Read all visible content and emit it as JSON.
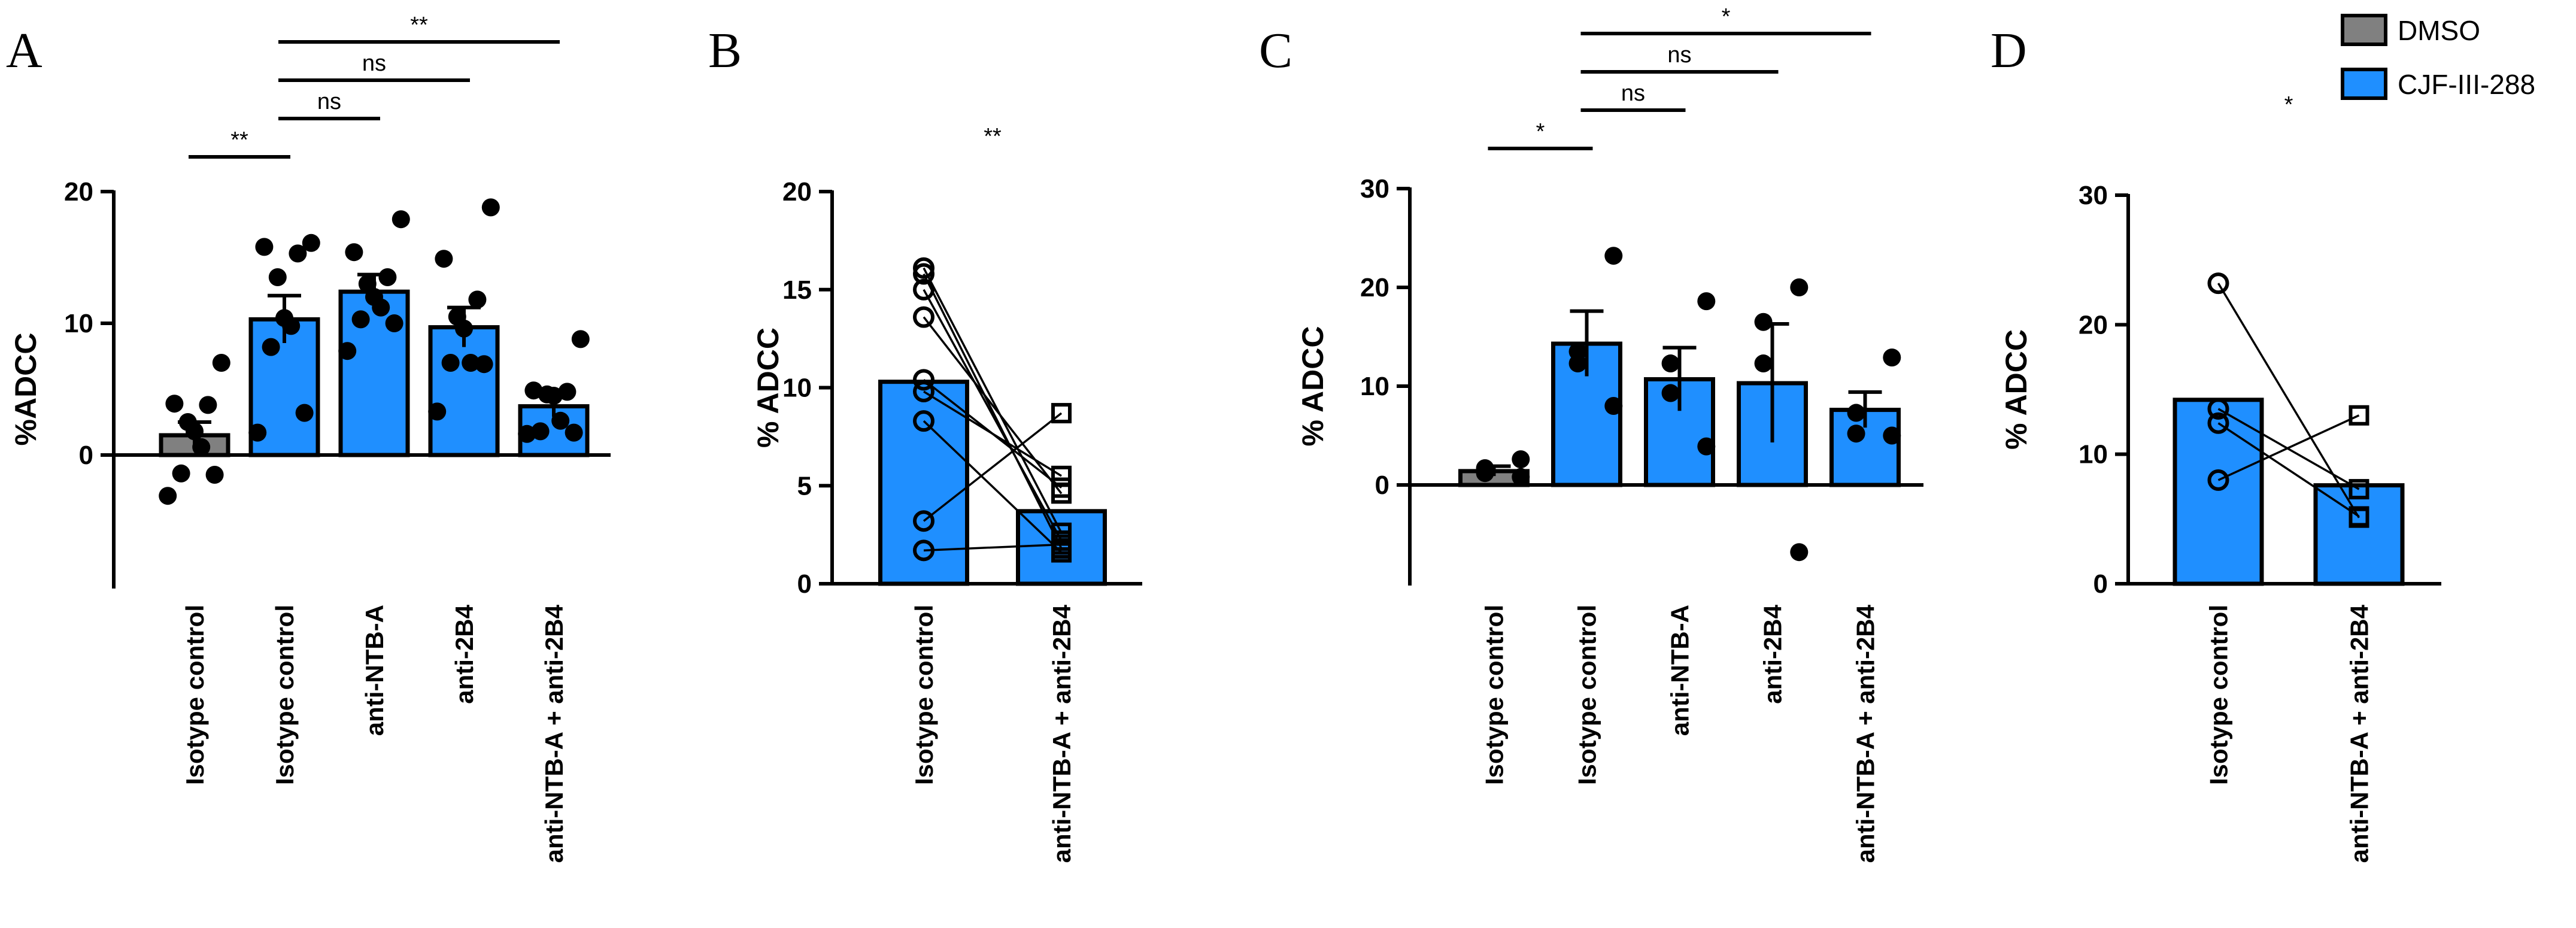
{
  "figure": {
    "legend": [
      {
        "label": "DMSO",
        "color": "#808080"
      },
      {
        "label": "CJF-III-288",
        "color": "#1f8fff"
      }
    ],
    "colors": {
      "dmso": "#808080",
      "cjf": "#1f8fff",
      "edge": "#000000"
    }
  },
  "chart_data": [
    {
      "panel": "A",
      "type": "bar",
      "ylabel": "%ADCC",
      "ylim": [
        -10,
        20
      ],
      "yticks": [
        0,
        10,
        20
      ],
      "categories": [
        "Isotype control",
        "Isotype control",
        "anti-NTB-A",
        "anti-2B4",
        "anti-NTB-A + anti-2B4"
      ],
      "treatment": [
        "DMSO",
        "CJF-III-288",
        "CJF-III-288",
        "CJF-III-288",
        "CJF-III-288"
      ],
      "values": [
        1.5,
        10.3,
        12.4,
        9.7,
        3.7
      ],
      "sem": [
        1.0,
        1.8,
        1.3,
        1.5,
        0.8
      ],
      "points": [
        [
          7.0,
          3.9,
          3.8,
          2.5,
          1.8,
          0.6,
          -1.4,
          -1.5,
          -3.1
        ],
        [
          16.1,
          15.8,
          15.3,
          13.5,
          10.4,
          9.8,
          8.2,
          3.2,
          1.7
        ],
        [
          17.9,
          15.4,
          13.5,
          13.0,
          12.0,
          11.2,
          10.3,
          10.0,
          7.9
        ],
        [
          18.8,
          14.9,
          11.8,
          10.5,
          9.6,
          7.0,
          7.0,
          6.9,
          3.3
        ],
        [
          8.8,
          4.9,
          4.8,
          4.6,
          4.5,
          2.6,
          1.8,
          1.7,
          1.6
        ]
      ],
      "comparisons": [
        {
          "from": 0,
          "to": 1,
          "label": "**"
        },
        {
          "from": 1,
          "to": 2,
          "label": "ns"
        },
        {
          "from": 1,
          "to": 3,
          "label": "ns"
        },
        {
          "from": 1,
          "to": 4,
          "label": "**"
        }
      ]
    },
    {
      "panel": "B",
      "type": "bar",
      "ylabel": "% ADCC",
      "ylim": [
        0,
        20
      ],
      "yticks": [
        0,
        5,
        10,
        15,
        20
      ],
      "categories": [
        "Isotype control",
        "anti-NTB-A + anti-2B4"
      ],
      "values": [
        10.3,
        3.7
      ],
      "paired": [
        [
          16.1,
          2.6
        ],
        [
          15.8,
          1.8
        ],
        [
          15.0,
          2.2
        ],
        [
          13.6,
          4.6
        ],
        [
          10.4,
          4.9
        ],
        [
          9.8,
          5.5
        ],
        [
          8.3,
          1.6
        ],
        [
          3.2,
          8.7
        ],
        [
          1.7,
          2.0
        ]
      ],
      "significance": "**"
    },
    {
      "panel": "C",
      "type": "bar",
      "ylabel": "% ADCC",
      "ylim": [
        -10,
        30
      ],
      "yticks": [
        0,
        10,
        20,
        30
      ],
      "categories": [
        "Isotype control",
        "Isotype control",
        "anti-NTB-A",
        "anti-2B4",
        "anti-NTB-A + anti-2B4"
      ],
      "treatment": [
        "DMSO",
        "CJF-III-288",
        "CJF-III-288",
        "CJF-III-288",
        "CJF-III-288"
      ],
      "values": [
        1.4,
        14.3,
        10.7,
        10.3,
        7.6
      ],
      "sem": [
        0.5,
        3.3,
        3.2,
        6.0,
        1.8
      ],
      "points": [
        [
          2.6,
          1.7,
          1.2,
          0.8
        ],
        [
          23.2,
          13.5,
          12.3,
          8.0
        ],
        [
          18.6,
          12.3,
          9.3,
          3.9
        ],
        [
          20.0,
          16.5,
          12.3,
          -6.8
        ],
        [
          12.9,
          7.3,
          5.2,
          5.0
        ]
      ],
      "comparisons": [
        {
          "from": 0,
          "to": 1,
          "label": "*"
        },
        {
          "from": 1,
          "to": 2,
          "label": "ns"
        },
        {
          "from": 1,
          "to": 3,
          "label": "ns"
        },
        {
          "from": 1,
          "to": 4,
          "label": "*"
        }
      ]
    },
    {
      "panel": "D",
      "type": "bar",
      "ylabel": "% ADCC",
      "ylim": [
        0,
        30
      ],
      "yticks": [
        0,
        10,
        20,
        30
      ],
      "categories": [
        "Isotype control",
        "anti-NTB-A + anti-2B4"
      ],
      "values": [
        14.2,
        7.6
      ],
      "paired": [
        [
          23.2,
          5.1
        ],
        [
          13.5,
          7.3
        ],
        [
          12.4,
          5.2
        ],
        [
          8.0,
          13.0
        ]
      ],
      "significance": "*"
    }
  ]
}
